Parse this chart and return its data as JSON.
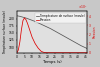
{
  "xlabel": "Temps (s)",
  "ylabel_left": "Température surface (moule)",
  "ylabel_right": "Pression",
  "x_temp": [
    0,
    2,
    4,
    6,
    8,
    10,
    12,
    14,
    16,
    18,
    20,
    22,
    24,
    26,
    28,
    30,
    32,
    34,
    36,
    38,
    40,
    42,
    44,
    46
  ],
  "y_temp": [
    210,
    208,
    205,
    202,
    198,
    194,
    190,
    185,
    180,
    175,
    170,
    165,
    159,
    153,
    147,
    141,
    135,
    129,
    123,
    117,
    111,
    105,
    100,
    95
  ],
  "x_pres": [
    0,
    1,
    2,
    3,
    4,
    5,
    6,
    7,
    8,
    9,
    10,
    12,
    14,
    16,
    18,
    20,
    22,
    23,
    23.5,
    24,
    25,
    30,
    46
  ],
  "y_pres": [
    0,
    3000000.0,
    12000000.0,
    25000000.0,
    35000000.0,
    38000000.0,
    36000000.0,
    32000000.0,
    27000000.0,
    22000000.0,
    17000000.0,
    10000000.0,
    5000000.0,
    1500000.0,
    200000.0,
    50000.0,
    20000.0,
    10000.0,
    0.0,
    0.0,
    0.0,
    0.0,
    0.0
  ],
  "temp_color": "#555555",
  "pres_color": "#dd0000",
  "xlim": [
    0,
    46
  ],
  "ylim_temp": [
    80,
    225
  ],
  "ylim_pres": [
    0,
    45000000.0
  ],
  "yticks_temp": [
    100,
    125,
    150,
    175,
    200
  ],
  "yticks_pres": [
    0,
    10000000.0,
    20000000.0,
    30000000.0,
    40000000.0
  ],
  "xticks": [
    0,
    5,
    10,
    15,
    20,
    25,
    30,
    35,
    40,
    45
  ],
  "legend_temp": "Température de surface (moule)",
  "legend_pres": "Pression",
  "plot_bg": "#e0e0e0",
  "fig_bg": "#c8c8c8"
}
